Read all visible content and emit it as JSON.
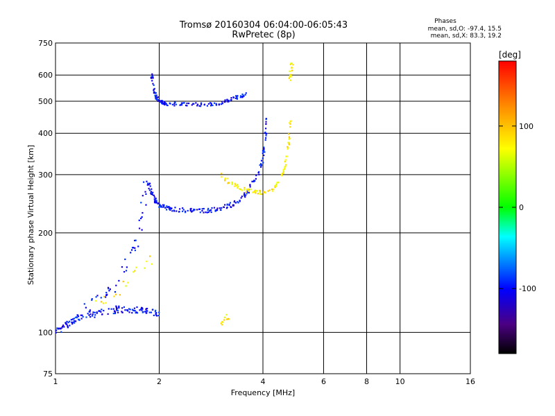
{
  "chart_data": {
    "type": "scatter",
    "title": "Tromsø 20160304 06:04:00-06:05:43",
    "subtitle": "RwPretec (8p)",
    "xlabel": "Frequency [MHz]",
    "ylabel": "Stationary phase Virtual Height [km]",
    "x_scale": "log",
    "y_scale": "log",
    "xlim": [
      1,
      16
    ],
    "ylim": [
      75,
      750
    ],
    "x_ticks": [
      1,
      2,
      4,
      6,
      8,
      10,
      16
    ],
    "y_ticks": [
      75,
      100,
      200,
      300,
      400,
      500,
      600,
      750
    ],
    "grid": true,
    "stats": {
      "heading": "Phases",
      "line_o": "mean, sd,O: -97.4, 15.5",
      "line_x": "mean, sd,X:  83.3, 19.2"
    },
    "colorbar": {
      "label": "[deg]",
      "ticks": [
        100,
        0,
        -100
      ],
      "range": [
        -180,
        180
      ]
    },
    "series": [
      {
        "mode": "O",
        "phase": -100,
        "segments": [
          {
            "f": [
              1.0,
              1.05,
              1.1,
              1.15,
              1.2,
              1.3,
              1.4,
              1.5,
              1.6,
              1.7,
              1.8,
              1.9,
              2.0
            ],
            "h": [
              100,
              103,
              108,
              110,
              112,
              114,
              116,
              117,
              118,
              117,
              116,
              115,
              114
            ],
            "jitter": 0.05,
            "n": 4
          },
          {
            "f": [
              1.2,
              1.3,
              1.4,
              1.5,
              1.6,
              1.7,
              1.75,
              1.8,
              1.85
            ],
            "h": [
              118,
              125,
              130,
              140,
              155,
              180,
              210,
              250,
              300
            ],
            "jitter": 0.08,
            "n": 2
          },
          {
            "f": [
              1.85,
              1.9,
              1.95,
              2.0,
              2.1,
              2.2,
              2.4,
              2.6,
              2.8,
              3.0,
              3.2,
              3.4,
              3.6,
              3.8,
              4.0,
              4.05,
              4.1
            ],
            "h": [
              290,
              265,
              250,
              242,
              238,
              236,
              234,
              233,
              234,
              237,
              242,
              250,
              265,
              290,
              330,
              380,
              440
            ],
            "jitter": 0.03,
            "n": 4
          },
          {
            "f": [
              1.9,
              1.92,
              1.95,
              2.0,
              2.05,
              2.1,
              2.3,
              2.5,
              2.8,
              3.0,
              3.2,
              3.4,
              3.6
            ],
            "h": [
              600,
              560,
              520,
              500,
              495,
              492,
              490,
              488,
              490,
              495,
              505,
              515,
              530
            ],
            "jitter": 0.025,
            "n": 4
          }
        ]
      },
      {
        "mode": "X",
        "phase": 80,
        "segments": [
          {
            "f": [
              1.3,
              1.4,
              1.5,
              1.6,
              1.7,
              1.8,
              1.9
            ],
            "h": [
              120,
              125,
              130,
              140,
              150,
              160,
              170
            ],
            "jitter": 0.08,
            "n": 1
          },
          {
            "f": [
              3.0,
              3.2,
              3.4,
              3.6,
              3.8,
              4.0,
              4.2,
              4.4,
              4.6,
              4.7,
              4.75,
              4.8
            ],
            "h": [
              300,
              285,
              275,
              268,
              265,
              265,
              268,
              280,
              305,
              340,
              380,
              440
            ],
            "jitter": 0.03,
            "n": 3
          },
          {
            "f": [
              4.8,
              4.82,
              4.85
            ],
            "h": [
              580,
              620,
              650
            ],
            "jitter": 0.04,
            "n": 3
          },
          {
            "f": [
              3.0,
              3.1,
              3.2
            ],
            "h": [
              105,
              110,
              112
            ],
            "jitter": 0.04,
            "n": 2
          }
        ]
      }
    ]
  }
}
